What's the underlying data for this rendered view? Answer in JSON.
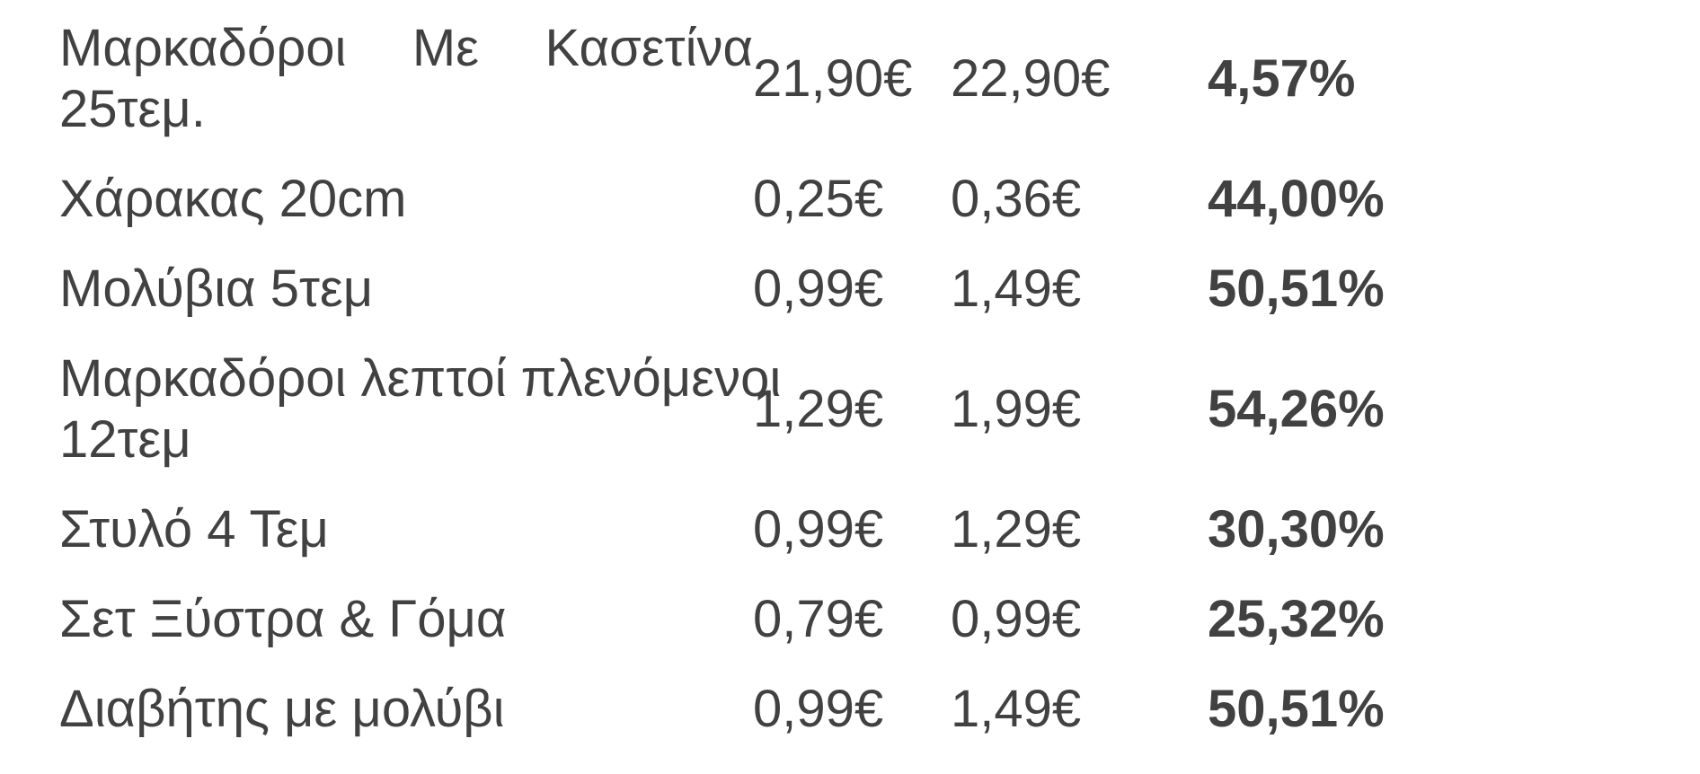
{
  "page": {
    "background_color": "#ffffff",
    "text_color": "#414141"
  },
  "table": {
    "rows": [
      {
        "name": "Μαρκαδόροι Με Κασετίνα 25τεμ.",
        "name_lines": [
          "Μαρκαδόροι Με Κασετίνα",
          "25τεμ."
        ],
        "justify_first_line": true,
        "price_a": "21,90€",
        "price_b": "22,90€",
        "percent": "4,57%"
      },
      {
        "name": "Χάρακας 20cm",
        "name_lines": [
          "Χάρακας 20cm"
        ],
        "justify_first_line": false,
        "price_a": "0,25€",
        "price_b": "0,36€",
        "percent": "44,00%"
      },
      {
        "name": "Μολύβια 5τεμ",
        "name_lines": [
          "Μολύβια 5τεμ"
        ],
        "justify_first_line": false,
        "price_a": "0,99€",
        "price_b": "1,49€",
        "percent": "50,51%"
      },
      {
        "name": "Μαρκαδόροι λεπτοί πλενόμενοι 12τεμ",
        "name_lines": [
          "Μαρκαδόροι λεπτοί πλενόμενοι",
          "12τεμ"
        ],
        "justify_first_line": true,
        "price_a": "1,29€",
        "price_b": "1,99€",
        "percent": "54,26%"
      },
      {
        "name": "Στυλό 4 Τεμ",
        "name_lines": [
          "Στυλό 4 Τεμ"
        ],
        "justify_first_line": false,
        "price_a": "0,99€",
        "price_b": "1,29€",
        "percent": "30,30%"
      },
      {
        "name": "Σετ Ξύστρα & Γόμα",
        "name_lines": [
          "Σετ Ξύστρα & Γόμα"
        ],
        "justify_first_line": false,
        "price_a": "0,79€",
        "price_b": "0,99€",
        "percent": "25,32%"
      },
      {
        "name": "Διαβήτης με μολύβι",
        "name_lines": [
          "Διαβήτης με μολύβι"
        ],
        "justify_first_line": false,
        "price_a": "0,99€",
        "price_b": "1,49€",
        "percent": "50,51%"
      }
    ]
  }
}
